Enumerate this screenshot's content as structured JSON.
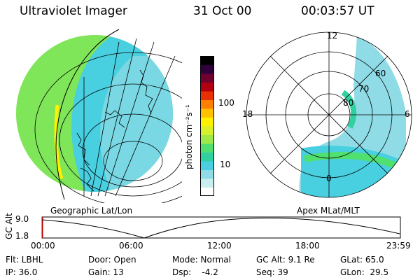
{
  "header": {
    "instrument": "Ultraviolet Imager",
    "date": "31 Oct 00",
    "time": "00:03:57 UT"
  },
  "left_panel": {
    "label": "Geographic Lat/Lon"
  },
  "right_panel": {
    "label": "Apex MLat/MLT",
    "mlt_labels": {
      "top": "12",
      "left": "18",
      "right": "6",
      "bottom": "0"
    },
    "lat_labels": [
      "60",
      "70",
      "80"
    ]
  },
  "colorbar": {
    "unit": "photon cm⁻²s⁻¹",
    "tick_labels": [
      "100",
      "10"
    ],
    "colors": [
      "#ffffff",
      "#c8eef0",
      "#8fdce6",
      "#48cfe0",
      "#30d0a0",
      "#50e070",
      "#9ee84a",
      "#d8f02a",
      "#fff000",
      "#ffc000",
      "#ff8000",
      "#e83000",
      "#b00010",
      "#700030",
      "#30003a",
      "#000000"
    ]
  },
  "alt_plot": {
    "ylabel": "GC Alt",
    "y_ticks": [
      "9.0",
      "1.8"
    ],
    "x_ticks": [
      "00:00",
      "06:00",
      "12:00",
      "18:00",
      "23:59"
    ]
  },
  "info_rows": [
    [
      "Flt: LBHL",
      "Door: Open",
      "Mode: Normal",
      "GC Alt: 9.1 Re",
      "GLat: 65.0"
    ],
    [
      "IP: 36.0",
      "Gain: 13",
      "Dsp:    -4.2",
      "Seq: 39",
      "GLon:  29.5"
    ]
  ]
}
